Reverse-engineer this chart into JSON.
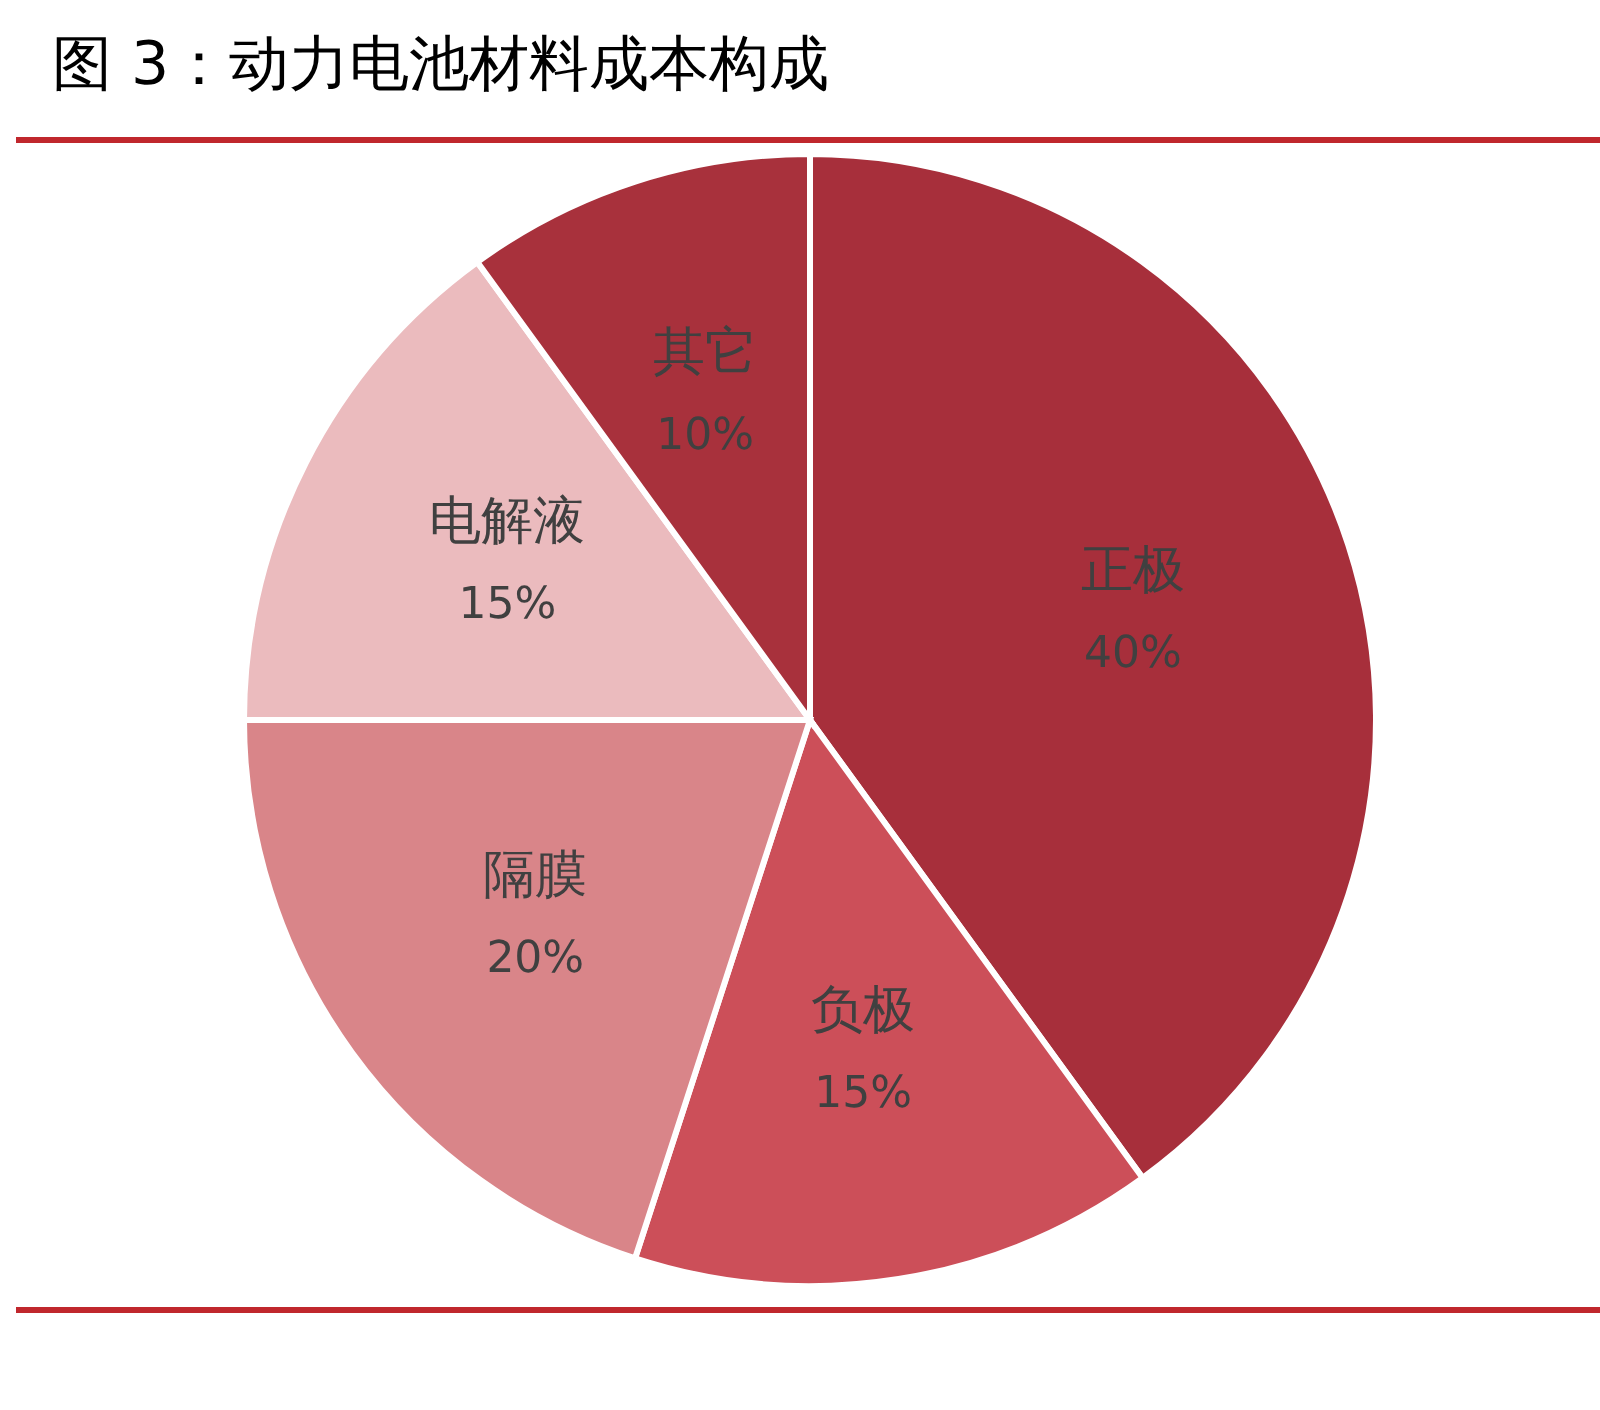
{
  "chart_data": {
    "type": "pie",
    "title": "图 3：动力电池材料成本构成",
    "categories": [
      "正极",
      "负极",
      "隔膜",
      "电解液",
      "其它"
    ],
    "values": [
      40,
      15,
      20,
      15,
      10
    ],
    "value_labels": [
      "40%",
      "15%",
      "20%",
      "15%",
      "10%"
    ],
    "colors": [
      "#a72f3b",
      "#cc4f59",
      "#d98589",
      "#ebbbbe",
      "#a8313c"
    ],
    "legend": false
  }
}
